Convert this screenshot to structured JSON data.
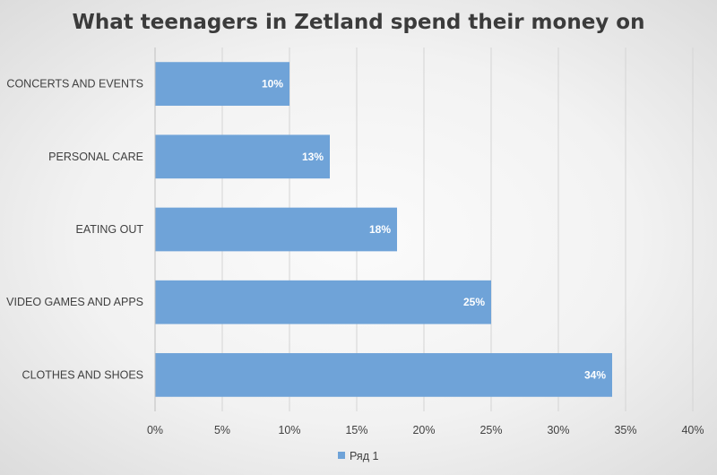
{
  "chart_data": {
    "type": "bar",
    "orientation": "horizontal",
    "title": "What teenagers in Zetland spend their money on",
    "categories": [
      "CONCERTS AND EVENTS",
      "PERSONAL CARE",
      "EATING OUT",
      "VIDEO GAMES AND APPS",
      "CLOTHES AND SHOES"
    ],
    "series": [
      {
        "name": "Ряд 1",
        "values": [
          10,
          13,
          18,
          25,
          34
        ]
      }
    ],
    "data_labels": [
      "10%",
      "13%",
      "18%",
      "25%",
      "34%"
    ],
    "x_ticks": [
      "0%",
      "5%",
      "10%",
      "15%",
      "20%",
      "25%",
      "30%",
      "35%",
      "40%"
    ],
    "xlim": [
      0,
      40
    ],
    "xlabel": "",
    "ylabel": "",
    "grid": "vertical",
    "legend_position": "bottom",
    "bar_color": "#6fa3d8",
    "grid_color": "#d4d4d4"
  }
}
